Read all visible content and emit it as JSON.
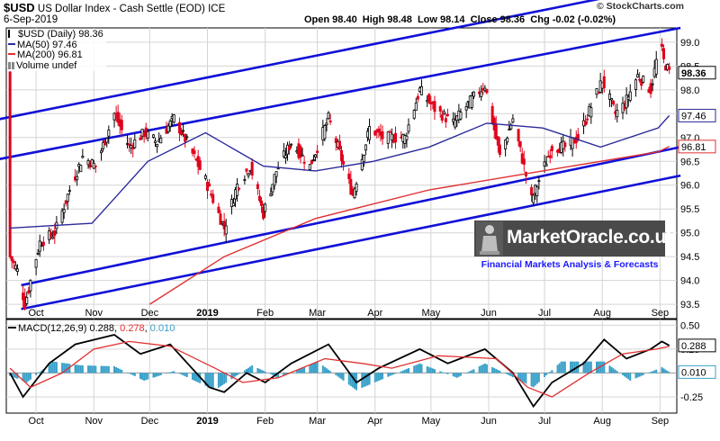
{
  "header": {
    "symbol": "$USD",
    "title": "US Dollar Index - Cash Settle (EOD)",
    "exchange": "ICE",
    "date": "6-Sep-2019",
    "brand": "© StockCharts.com",
    "ohlc": "Open 98.40  High 98.48  Low 98.14  Close 98.36  Chg -0.02 (-0.02%)",
    "legend": {
      "price": "$USD (Daily) 98.36",
      "ma50": "MA(50) 97.46",
      "ma200": "MA(200) 96.81",
      "volume": "Volume undef"
    },
    "macd_label": "MACD(12,26,9)",
    "macd_value": "0.288",
    "macd_signal": "0.278",
    "macd_hist": "0.010"
  },
  "watermark": {
    "brand": "MarketOracle.co.uk",
    "tagline": "Financial Markets Analysis & Forecasts"
  },
  "colors": {
    "up": "#000000",
    "down": "#e0001a",
    "ma50": "#2b2b9a",
    "ma200": "#e03030",
    "channel": "#1010d8",
    "macd_line": "#000000",
    "signal_line": "#e03030",
    "histogram": "#3aa0c8",
    "grid": "#d4d4d4"
  },
  "chart_data": [
    {
      "type": "line",
      "title": "$USD (Daily)",
      "x_months": [
        "Oct",
        "Nov",
        "Dec",
        "2019",
        "Feb",
        "Mar",
        "Apr",
        "May",
        "Jun",
        "Jul",
        "Aug",
        "Sep"
      ],
      "ylim": [
        93.2,
        99.3
      ],
      "yticks": [
        93.5,
        94.0,
        94.5,
        95.0,
        95.5,
        96.0,
        96.5,
        97.0,
        97.5,
        98.0,
        98.5,
        99.0
      ],
      "grid": true,
      "price_path": [
        {
          "date": "2018-09-17",
          "value": 94.5
        },
        {
          "date": "2018-09-21",
          "value": 94.2
        },
        {
          "date": "2018-09-25",
          "value": 93.5
        },
        {
          "date": "2018-10-03",
          "value": 94.8
        },
        {
          "date": "2018-10-11",
          "value": 95.0
        },
        {
          "date": "2018-10-19",
          "value": 95.9
        },
        {
          "date": "2018-10-26",
          "value": 96.6
        },
        {
          "date": "2018-11-02",
          "value": 96.4
        },
        {
          "date": "2018-11-12",
          "value": 97.5
        },
        {
          "date": "2018-11-20",
          "value": 96.8
        },
        {
          "date": "2018-11-28",
          "value": 97.1
        },
        {
          "date": "2018-12-05",
          "value": 96.9
        },
        {
          "date": "2018-12-14",
          "value": 97.4
        },
        {
          "date": "2018-12-21",
          "value": 96.9
        },
        {
          "date": "2018-12-31",
          "value": 96.1
        },
        {
          "date": "2019-01-10",
          "value": 95.1
        },
        {
          "date": "2019-01-17",
          "value": 96.0
        },
        {
          "date": "2019-01-24",
          "value": 96.4
        },
        {
          "date": "2019-01-31",
          "value": 95.4
        },
        {
          "date": "2019-02-07",
          "value": 96.3
        },
        {
          "date": "2019-02-15",
          "value": 96.9
        },
        {
          "date": "2019-02-25",
          "value": 96.4
        },
        {
          "date": "2019-03-07",
          "value": 97.4
        },
        {
          "date": "2019-03-12",
          "value": 96.8
        },
        {
          "date": "2019-03-20",
          "value": 95.8
        },
        {
          "date": "2019-03-29",
          "value": 97.2
        },
        {
          "date": "2019-04-05",
          "value": 97.0
        },
        {
          "date": "2019-04-17",
          "value": 97.0
        },
        {
          "date": "2019-04-25",
          "value": 98.0
        },
        {
          "date": "2019-05-03",
          "value": 97.6
        },
        {
          "date": "2019-05-13",
          "value": 97.3
        },
        {
          "date": "2019-05-23",
          "value": 97.8
        },
        {
          "date": "2019-05-30",
          "value": 98.1
        },
        {
          "date": "2019-06-07",
          "value": 96.6
        },
        {
          "date": "2019-06-14",
          "value": 97.4
        },
        {
          "date": "2019-06-24",
          "value": 95.7
        },
        {
          "date": "2019-06-28",
          "value": 96.1
        },
        {
          "date": "2019-07-05",
          "value": 96.8
        },
        {
          "date": "2019-07-12",
          "value": 96.8
        },
        {
          "date": "2019-07-19",
          "value": 97.0
        },
        {
          "date": "2019-08-01",
          "value": 98.2
        },
        {
          "date": "2019-08-08",
          "value": 97.5
        },
        {
          "date": "2019-08-13",
          "value": 97.7
        },
        {
          "date": "2019-08-20",
          "value": 98.3
        },
        {
          "date": "2019-08-27",
          "value": 98.0
        },
        {
          "date": "2019-09-01",
          "value": 99.0
        },
        {
          "date": "2019-09-03",
          "value": 98.6
        },
        {
          "date": "2019-09-06",
          "value": 98.36
        }
      ],
      "series": [
        {
          "name": "MA(50)",
          "values": [
            {
              "date": "2018-09-17",
              "value": 95.1
            },
            {
              "date": "2018-10-31",
              "value": 95.2
            },
            {
              "date": "2018-11-30",
              "value": 96.5
            },
            {
              "date": "2018-12-31",
              "value": 97.1
            },
            {
              "date": "2019-01-31",
              "value": 96.4
            },
            {
              "date": "2019-02-28",
              "value": 96.3
            },
            {
              "date": "2019-03-31",
              "value": 96.5
            },
            {
              "date": "2019-04-30",
              "value": 96.8
            },
            {
              "date": "2019-05-31",
              "value": 97.3
            },
            {
              "date": "2019-06-30",
              "value": 97.2
            },
            {
              "date": "2019-07-31",
              "value": 96.8
            },
            {
              "date": "2019-08-31",
              "value": 97.2
            },
            {
              "date": "2019-09-06",
              "value": 97.46
            }
          ]
        },
        {
          "name": "MA(200)",
          "values": [
            {
              "date": "2018-12-01",
              "value": 93.5
            },
            {
              "date": "2019-01-10",
              "value": 94.5
            },
            {
              "date": "2019-02-28",
              "value": 95.3
            },
            {
              "date": "2019-04-30",
              "value": 95.9
            },
            {
              "date": "2019-06-30",
              "value": 96.3
            },
            {
              "date": "2019-08-31",
              "value": 96.7
            },
            {
              "date": "2019-09-06",
              "value": 96.81
            }
          ]
        }
      ],
      "annotations": {
        "last_price": 98.36,
        "ma50_last": 97.46,
        "ma200_last": 96.81
      },
      "trend_channels": [
        {
          "start": {
            "date": "2018-08-25",
            "value": 97.25
          },
          "end": {
            "date": "2019-09-12",
            "value": 100.25
          }
        },
        {
          "start": {
            "date": "2018-09-05",
            "value": 96.5
          },
          "end": {
            "date": "2019-09-12",
            "value": 99.3
          }
        },
        {
          "start": {
            "date": "2018-09-23",
            "value": 93.9
          },
          "end": {
            "date": "2019-09-12",
            "value": 96.8
          }
        },
        {
          "start": {
            "date": "2018-09-23",
            "value": 93.4
          },
          "end": {
            "date": "2019-09-12",
            "value": 96.2
          }
        }
      ]
    },
    {
      "type": "line",
      "title": "MACD(12,26,9)",
      "x_months": [
        "Oct",
        "Nov",
        "Dec",
        "2019",
        "Feb",
        "Mar",
        "Apr",
        "May",
        "Jun",
        "Jul",
        "Aug",
        "Sep"
      ],
      "ylim": [
        -0.42,
        0.56
      ],
      "yticks": [
        0.5,
        0.25,
        0.0,
        -0.25
      ],
      "grid": true,
      "series": [
        {
          "name": "MACD(12,26,9)",
          "values": [
            {
              "date": "2018-09-17",
              "value": 0.0
            },
            {
              "date": "2018-09-24",
              "value": -0.25
            },
            {
              "date": "2018-10-08",
              "value": 0.1
            },
            {
              "date": "2018-10-22",
              "value": 0.3
            },
            {
              "date": "2018-11-12",
              "value": 0.4
            },
            {
              "date": "2018-11-26",
              "value": 0.2
            },
            {
              "date": "2018-12-12",
              "value": 0.3
            },
            {
              "date": "2019-01-02",
              "value": -0.15
            },
            {
              "date": "2019-01-10",
              "value": -0.2
            },
            {
              "date": "2019-01-22",
              "value": 0.0
            },
            {
              "date": "2019-02-01",
              "value": -0.1
            },
            {
              "date": "2019-02-15",
              "value": 0.1
            },
            {
              "date": "2019-03-07",
              "value": 0.3
            },
            {
              "date": "2019-03-22",
              "value": -0.1
            },
            {
              "date": "2019-04-03",
              "value": 0.05
            },
            {
              "date": "2019-04-25",
              "value": 0.25
            },
            {
              "date": "2019-05-10",
              "value": 0.1
            },
            {
              "date": "2019-05-30",
              "value": 0.25
            },
            {
              "date": "2019-06-14",
              "value": 0.0
            },
            {
              "date": "2019-06-25",
              "value": -0.35
            },
            {
              "date": "2019-07-05",
              "value": -0.1
            },
            {
              "date": "2019-07-22",
              "value": 0.1
            },
            {
              "date": "2019-08-02",
              "value": 0.35
            },
            {
              "date": "2019-08-14",
              "value": 0.15
            },
            {
              "date": "2019-08-27",
              "value": 0.25
            },
            {
              "date": "2019-09-02",
              "value": 0.33
            },
            {
              "date": "2019-09-06",
              "value": 0.288
            }
          ]
        },
        {
          "name": "Signal",
          "values": [
            {
              "date": "2018-09-17",
              "value": 0.05
            },
            {
              "date": "2018-09-28",
              "value": -0.15
            },
            {
              "date": "2018-10-15",
              "value": 0.0
            },
            {
              "date": "2018-11-01",
              "value": 0.25
            },
            {
              "date": "2018-11-20",
              "value": 0.33
            },
            {
              "date": "2018-12-12",
              "value": 0.28
            },
            {
              "date": "2019-01-05",
              "value": 0.05
            },
            {
              "date": "2019-01-20",
              "value": -0.1
            },
            {
              "date": "2019-02-08",
              "value": -0.05
            },
            {
              "date": "2019-03-05",
              "value": 0.15
            },
            {
              "date": "2019-03-25",
              "value": 0.1
            },
            {
              "date": "2019-04-10",
              "value": 0.05
            },
            {
              "date": "2019-05-05",
              "value": 0.18
            },
            {
              "date": "2019-06-05",
              "value": 0.15
            },
            {
              "date": "2019-06-22",
              "value": -0.15
            },
            {
              "date": "2019-07-05",
              "value": -0.25
            },
            {
              "date": "2019-07-25",
              "value": 0.0
            },
            {
              "date": "2019-08-12",
              "value": 0.2
            },
            {
              "date": "2019-08-30",
              "value": 0.25
            },
            {
              "date": "2019-09-06",
              "value": 0.278
            }
          ]
        }
      ],
      "histogram_path": [
        {
          "date": "2018-09-17",
          "value": -0.03
        },
        {
          "date": "2018-09-26",
          "value": -0.1
        },
        {
          "date": "2018-10-10",
          "value": 0.12
        },
        {
          "date": "2018-10-25",
          "value": 0.08
        },
        {
          "date": "2018-11-12",
          "value": 0.07
        },
        {
          "date": "2018-11-28",
          "value": -0.08
        },
        {
          "date": "2018-12-14",
          "value": 0.02
        },
        {
          "date": "2019-01-05",
          "value": -0.18
        },
        {
          "date": "2019-01-25",
          "value": 0.08
        },
        {
          "date": "2019-02-08",
          "value": -0.05
        },
        {
          "date": "2019-03-01",
          "value": 0.12
        },
        {
          "date": "2019-03-22",
          "value": -0.18
        },
        {
          "date": "2019-04-25",
          "value": 0.1
        },
        {
          "date": "2019-05-15",
          "value": -0.05
        },
        {
          "date": "2019-05-30",
          "value": 0.1
        },
        {
          "date": "2019-06-25",
          "value": -0.15
        },
        {
          "date": "2019-07-10",
          "value": 0.12
        },
        {
          "date": "2019-08-02",
          "value": 0.12
        },
        {
          "date": "2019-08-16",
          "value": -0.08
        },
        {
          "date": "2019-09-02",
          "value": 0.06
        },
        {
          "date": "2019-09-06",
          "value": 0.01
        }
      ],
      "annotations": {
        "macd_last": 0.288,
        "hist_last": 0.01
      }
    }
  ]
}
